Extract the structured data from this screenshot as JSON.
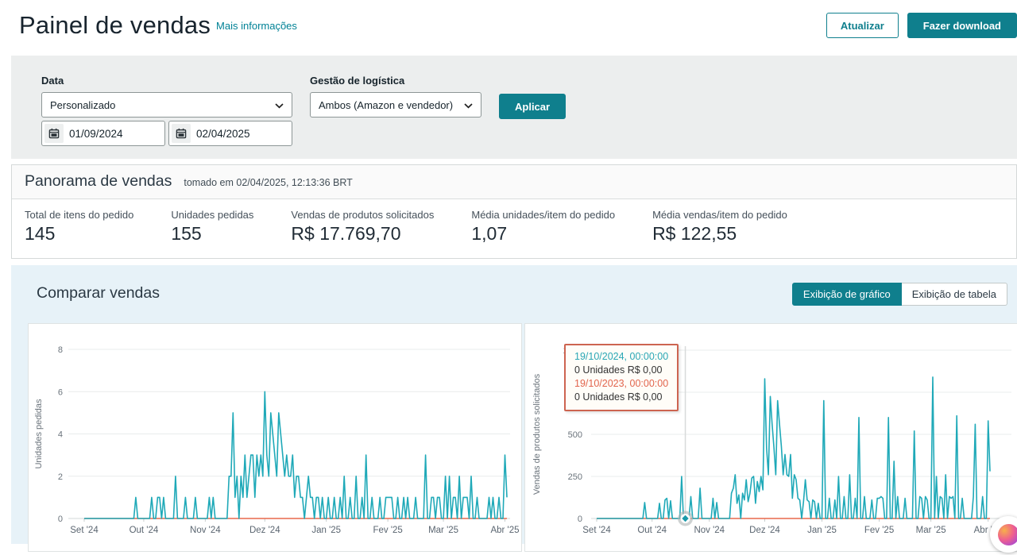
{
  "header": {
    "title": "Painel de vendas",
    "info_link": "Mais informações",
    "refresh_label": "Atualizar",
    "download_label": "Fazer download"
  },
  "filters": {
    "date_label": "Data",
    "date_preset": "Personalizado",
    "date_from": "01/09/2024",
    "date_to": "02/04/2025",
    "logistics_label": "Gestão de logística",
    "logistics_value": "Ambos (Amazon e vendedor)",
    "apply_label": "Aplicar"
  },
  "overview": {
    "title": "Panorama de vendas",
    "snapshot": "tomado em 02/04/2025, 12:13:36 BRT",
    "stats": [
      {
        "label": "Total de itens do pedido",
        "value": "145"
      },
      {
        "label": "Unidades pedidas",
        "value": "155"
      },
      {
        "label": "Vendas de produtos solicitados",
        "value": "R$ 17.769,70"
      },
      {
        "label": "Média unidades/item do pedido",
        "value": "1,07"
      },
      {
        "label": "Média vendas/item do pedido",
        "value": "R$ 122,55"
      }
    ]
  },
  "compare": {
    "title": "Comparar vendas",
    "chart_toggle": "Exibição de gráfico",
    "table_toggle": "Exibição de tabela"
  },
  "tooltip": {
    "line1": "19/10/2024, 00:00:00",
    "line2": "0 Unidades R$ 0,00",
    "line3": "19/10/2023, 00:00:00",
    "line4": "0 Unidades R$ 0,00"
  },
  "colors": {
    "accent_teal": "#0f7f8d",
    "link_teal": "#008296",
    "series_current": "#1fa9b8",
    "series_previous": "#e8684c",
    "tooltip_border": "#cd6450",
    "compare_bg": "#e7f2f8"
  },
  "chart_data": [
    {
      "type": "line",
      "name": "unidades-pedidas",
      "ylabel": "Unidades pedidas",
      "ylim": [
        0,
        8
      ],
      "yticks": [
        0,
        2,
        4,
        6,
        8
      ],
      "n_days": 214,
      "x_range": "01/09/2024 - 02/04/2025",
      "x_ticks": [
        {
          "label": "Set '24",
          "day": 0
        },
        {
          "label": "Out '24",
          "day": 30
        },
        {
          "label": "Nov '24",
          "day": 61
        },
        {
          "label": "Dez '24",
          "day": 91
        },
        {
          "label": "Jan '25",
          "day": 122
        },
        {
          "label": "Fev '25",
          "day": 153
        },
        {
          "label": "Mar '25",
          "day": 181
        },
        {
          "label": "Abr '25",
          "day": 212
        }
      ],
      "series": [
        {
          "name": "current",
          "color": "#1fa9b8",
          "values": [
            0,
            0,
            0,
            0,
            0,
            0,
            0,
            0,
            0,
            0,
            0,
            0,
            0,
            0,
            0,
            0,
            0,
            0,
            0,
            0,
            0,
            0,
            0,
            0,
            0,
            0,
            1,
            0,
            0,
            0,
            0,
            0,
            0,
            0,
            1,
            0,
            0,
            1,
            1,
            0,
            1,
            0,
            0,
            0,
            0,
            0,
            2,
            0,
            0,
            0,
            0,
            1,
            0,
            0,
            0,
            0,
            1,
            0,
            0,
            0,
            0,
            0,
            0,
            1,
            0,
            1,
            0,
            0,
            0,
            0,
            0,
            0,
            0,
            2,
            2,
            5,
            1,
            2,
            0,
            2,
            1,
            3,
            1,
            2,
            3,
            3,
            1,
            3,
            2,
            3,
            2,
            6,
            3,
            2,
            5,
            4,
            3,
            2,
            5,
            4,
            3,
            2,
            3,
            2,
            2,
            3,
            1,
            2,
            2,
            1,
            1,
            0,
            1,
            2,
            1,
            1,
            0,
            1,
            1,
            0,
            1,
            0,
            0,
            1,
            0,
            0,
            1,
            0,
            0,
            1,
            0,
            2,
            0,
            0,
            1,
            0,
            0,
            2,
            0,
            0,
            1,
            0,
            3,
            0,
            0,
            1,
            0,
            0,
            0,
            1,
            0,
            0,
            1,
            1,
            1,
            1,
            0,
            0,
            1,
            0,
            0,
            1,
            0,
            1,
            0,
            0,
            0,
            1,
            0,
            0,
            0,
            0,
            3,
            0,
            0,
            1,
            1,
            0,
            1,
            1,
            0,
            0,
            2,
            0,
            2,
            0,
            1,
            1,
            0,
            2,
            0,
            1,
            1,
            1,
            0,
            2,
            0,
            0,
            1,
            0,
            0,
            0,
            0,
            0,
            1,
            0,
            1,
            0,
            0,
            1,
            0,
            0,
            3,
            1
          ]
        },
        {
          "name": "previous_year",
          "color": "#e8684c",
          "constant": 0
        }
      ]
    },
    {
      "type": "line",
      "name": "vendas-produtos",
      "ylabel": "Vendas de produtos solicitados",
      "ylim": [
        0,
        1000
      ],
      "yticks": [
        0,
        250,
        500,
        750,
        1000
      ],
      "n_days": 214,
      "x_range": "01/09/2024 - 02/04/2025",
      "crosshair_day": 48,
      "x_ticks": [
        {
          "label": "Set '24",
          "day": 0
        },
        {
          "label": "Out '24",
          "day": 30
        },
        {
          "label": "Nov '24",
          "day": 61
        },
        {
          "label": "Dez '24",
          "day": 91
        },
        {
          "label": "Jan '25",
          "day": 122
        },
        {
          "label": "Fev '25",
          "day": 153
        },
        {
          "label": "Mar '25",
          "day": 181
        },
        {
          "label": "Abr '25",
          "day": 212
        }
      ],
      "series": [
        {
          "name": "current",
          "color": "#1fa9b8",
          "values": [
            0,
            0,
            0,
            0,
            0,
            0,
            0,
            0,
            0,
            0,
            0,
            0,
            0,
            0,
            0,
            0,
            0,
            0,
            0,
            0,
            0,
            0,
            0,
            0,
            0,
            0,
            95,
            0,
            0,
            0,
            0,
            0,
            0,
            0,
            90,
            0,
            0,
            110,
            120,
            0,
            105,
            0,
            0,
            0,
            0,
            0,
            250,
            0,
            0,
            0,
            0,
            130,
            0,
            0,
            0,
            0,
            180,
            0,
            0,
            0,
            0,
            0,
            0,
            120,
            0,
            95,
            0,
            0,
            0,
            0,
            0,
            0,
            0,
            150,
            180,
            260,
            90,
            140,
            0,
            150,
            110,
            230,
            100,
            150,
            240,
            250,
            90,
            220,
            160,
            250,
            170,
            830,
            420,
            260,
            725,
            560,
            420,
            260,
            700,
            560,
            430,
            260,
            380,
            260,
            250,
            380,
            120,
            260,
            230,
            120,
            110,
            0,
            100,
            230,
            110,
            100,
            0,
            110,
            100,
            0,
            90,
            0,
            0,
            700,
            0,
            0,
            120,
            0,
            0,
            110,
            0,
            250,
            0,
            0,
            130,
            0,
            0,
            260,
            0,
            0,
            120,
            0,
            600,
            0,
            0,
            130,
            0,
            0,
            0,
            110,
            0,
            0,
            120,
            120,
            130,
            120,
            0,
            0,
            600,
            0,
            0,
            340,
            0,
            130,
            0,
            0,
            0,
            120,
            0,
            0,
            0,
            0,
            520,
            0,
            0,
            130,
            120,
            0,
            130,
            110,
            0,
            0,
            840,
            0,
            250,
            0,
            130,
            120,
            0,
            260,
            0,
            130,
            120,
            130,
            0,
            610,
            0,
            0,
            120,
            0,
            0,
            0,
            0,
            0,
            130,
            560,
            0,
            0,
            0,
            130,
            0,
            0,
            580,
            280
          ]
        },
        {
          "name": "previous_year",
          "color": "#e8684c",
          "constant": 0
        }
      ]
    }
  ]
}
